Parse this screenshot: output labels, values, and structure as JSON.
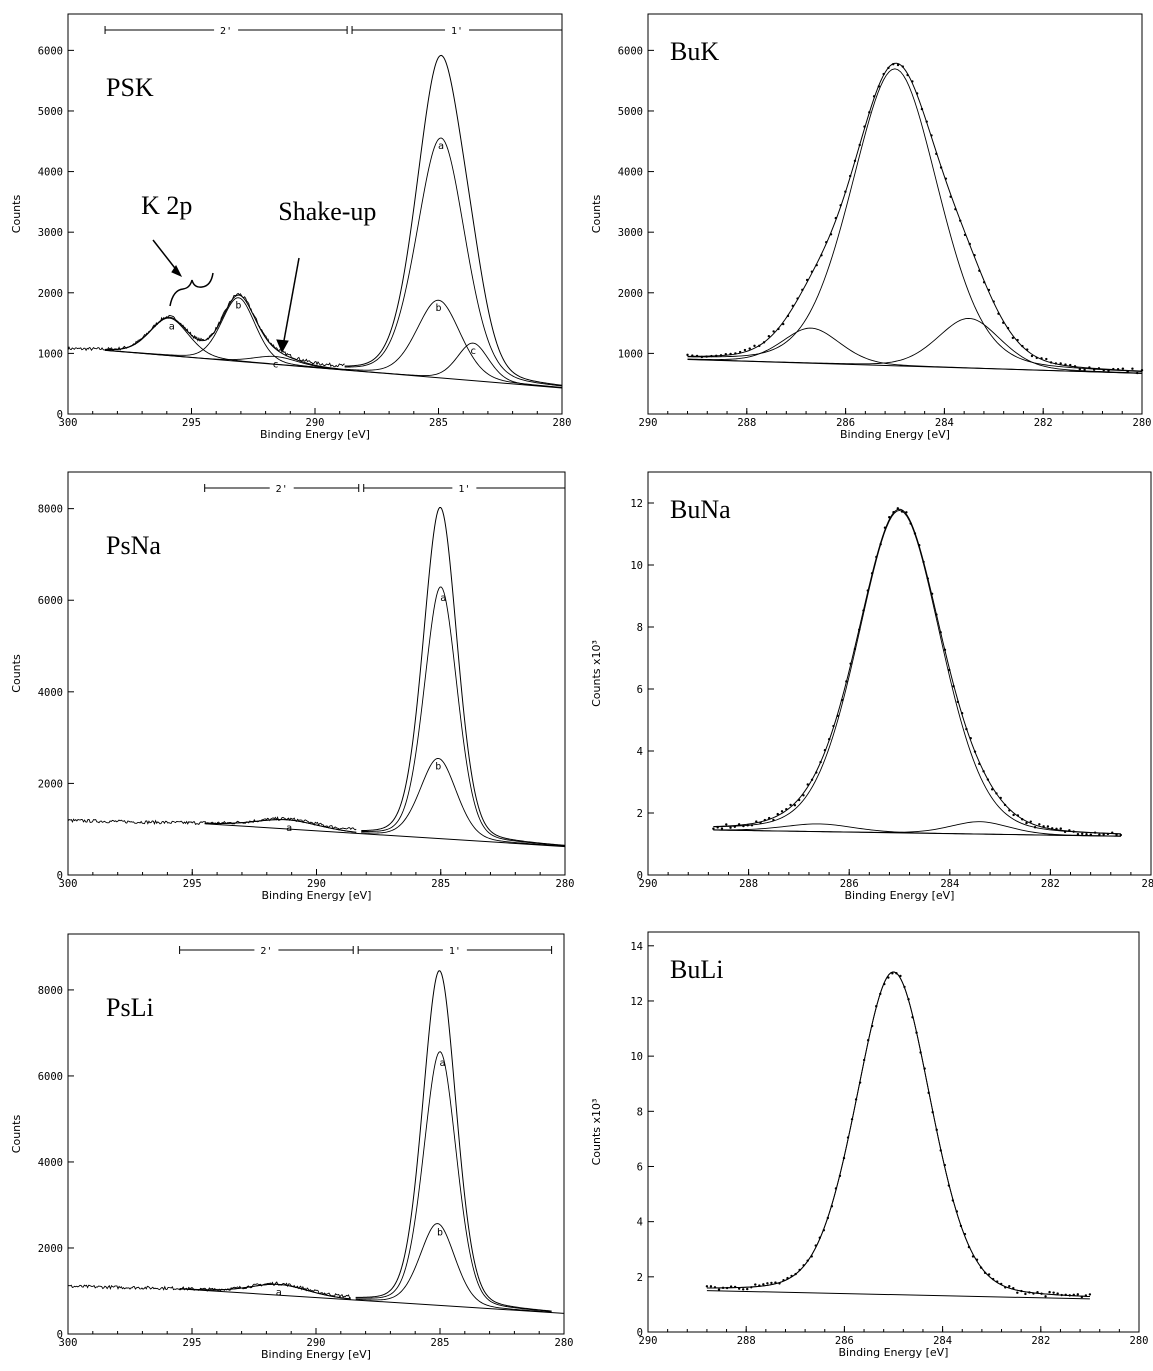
{
  "chart_data": [
    {
      "id": "psk",
      "type": "line",
      "title": "PSK",
      "xlabel": "Binding Energy [eV]",
      "ylabel": "Counts",
      "y_multiplier_label": "",
      "xlim": [
        300,
        280
      ],
      "ylim": [
        0,
        6600
      ],
      "xticks": [
        300,
        295,
        290,
        285,
        280
      ],
      "yticks": [
        0,
        1000,
        2000,
        3000,
        4000,
        5000,
        6000
      ],
      "ranges": [
        {
          "label": "2'",
          "from": 298.5,
          "to": 288.7
        },
        {
          "label": "1'",
          "from": 288.5,
          "to": 280
        }
      ],
      "background": {
        "x": [
          298.5,
          280
        ],
        "y": [
          1050,
          430
        ]
      },
      "components": [
        {
          "name": "a",
          "center": 284.9,
          "height": 3960,
          "width": 1.0,
          "label_x": 284.9
        },
        {
          "name": "b",
          "center": 285.0,
          "height": 1280,
          "width": 0.9,
          "label_x": 285.0
        },
        {
          "name": "c",
          "center": 283.6,
          "height": 620,
          "width": 0.65,
          "label_x": 283.6
        },
        {
          "name": "a",
          "center": 295.9,
          "height": 620,
          "width": 0.8,
          "label_x": 295.8
        },
        {
          "name": "b",
          "center": 293.1,
          "height": 1050,
          "width": 0.7,
          "label_x": 293.1
        },
        {
          "name": "c",
          "center": 291.6,
          "height": 130,
          "width": 0.9,
          "label_x": 291.6
        }
      ],
      "envelope_groups": [
        [
          0,
          1,
          2
        ],
        [
          3,
          4,
          5
        ]
      ],
      "envelope_range": [
        [
          288.8,
          280
        ],
        [
          298.5,
          288.7
        ]
      ],
      "noisy_data_x_range": [
        300,
        288.8
      ],
      "annotations": [
        {
          "text": "K 2p",
          "x": 296.0,
          "y": 3300
        },
        {
          "text": "Shake-up",
          "x": 289.5,
          "y": 3200
        }
      ]
    },
    {
      "id": "buk",
      "type": "scatter",
      "title": "BuK",
      "xlabel": "Binding Energy [eV]",
      "ylabel": "Counts",
      "y_multiplier_label": "",
      "xlim": [
        290,
        280
      ],
      "ylim": [
        0,
        6600
      ],
      "xticks": [
        290,
        288,
        286,
        284,
        282,
        280
      ],
      "yticks": [
        1000,
        2000,
        3000,
        4000,
        5000,
        6000
      ],
      "ranges": [],
      "background": {
        "x": [
          289.2,
          280
        ],
        "y": [
          900,
          670
        ]
      },
      "components": [
        {
          "name": "",
          "center": 285.0,
          "height": 4900,
          "width": 0.9,
          "label_x": 285.0
        },
        {
          "name": "",
          "center": 286.7,
          "height": 580,
          "width": 0.6,
          "label_x": 286.7
        },
        {
          "name": "",
          "center": 283.5,
          "height": 820,
          "width": 0.65,
          "label_x": 283.5
        }
      ],
      "envelope_groups": [
        [
          0,
          1,
          2
        ]
      ],
      "envelope_range": [
        [
          289.2,
          280
        ]
      ],
      "points_x_range": [
        289.2,
        280
      ],
      "annotations": []
    },
    {
      "id": "psna",
      "type": "line",
      "title": "PsNa",
      "xlabel": "Binding Energy [eV]",
      "ylabel": "Counts",
      "y_multiplier_label": "",
      "xlim": [
        300,
        280
      ],
      "ylim": [
        0,
        8800
      ],
      "xticks": [
        300,
        295,
        290,
        285,
        280
      ],
      "yticks": [
        0,
        2000,
        4000,
        6000,
        8000
      ],
      "ranges": [
        {
          "label": "2'",
          "from": 294.5,
          "to": 288.3
        },
        {
          "label": "1'",
          "from": 288.1,
          "to": 280
        }
      ],
      "background": {
        "x": [
          294.5,
          280
        ],
        "y": [
          1120,
          620
        ]
      },
      "components": [
        {
          "name": "a",
          "center": 285.0,
          "height": 5500,
          "width": 0.68,
          "label_x": 284.9
        },
        {
          "name": "b",
          "center": 285.1,
          "height": 1750,
          "width": 0.75,
          "label_x": 285.1
        },
        {
          "name": "a",
          "center": 291.2,
          "height": 200,
          "width": 1.3,
          "label_x": 291.1
        }
      ],
      "envelope_groups": [
        [
          0,
          1
        ],
        [
          2
        ]
      ],
      "envelope_range": [
        [
          288.2,
          280
        ],
        [
          294.5,
          288.4
        ]
      ],
      "noisy_data_x_range": [
        300,
        288.4
      ],
      "annotations": []
    },
    {
      "id": "buna",
      "type": "scatter",
      "title": "BuNa",
      "xlabel": "Binding Energy [eV]",
      "ylabel": "Counts x10³",
      "y_multiplier_label": "x10³",
      "xlim": [
        290,
        280
      ],
      "ylim": [
        0,
        13
      ],
      "xticks": [
        290,
        288,
        286,
        284,
        282,
        280
      ],
      "yticks": [
        0,
        2,
        4,
        6,
        8,
        10,
        12
      ],
      "ranges": [],
      "background": {
        "x": [
          288.7,
          280.6
        ],
        "y": [
          1.45,
          1.25
        ]
      },
      "components": [
        {
          "name": "",
          "center": 285.0,
          "height": 10.4,
          "width": 0.85,
          "label_x": 285.0
        },
        {
          "name": "",
          "center": 286.6,
          "height": 0.25,
          "width": 0.7,
          "label_x": 286.6
        },
        {
          "name": "",
          "center": 283.4,
          "height": 0.4,
          "width": 0.6,
          "label_x": 283.4
        }
      ],
      "envelope_groups": [
        [
          0,
          1,
          2
        ]
      ],
      "envelope_range": [
        [
          288.7,
          280.6
        ]
      ],
      "points_x_range": [
        288.7,
        280.6
      ],
      "annotations": []
    },
    {
      "id": "psli",
      "type": "line",
      "title": "PsLi",
      "xlabel": "Binding Energy [eV]",
      "ylabel": "Counts",
      "y_multiplier_label": "",
      "xlim": [
        300,
        280
      ],
      "ylim": [
        0,
        9300
      ],
      "xticks": [
        300,
        295,
        290,
        285,
        280
      ],
      "yticks": [
        0,
        2000,
        4000,
        6000,
        8000
      ],
      "ranges": [
        {
          "label": "2'",
          "from": 295.5,
          "to": 288.5
        },
        {
          "label": "1'",
          "from": 288.3,
          "to": 280.5
        }
      ],
      "background": {
        "x": [
          295.5,
          280
        ],
        "y": [
          1050,
          480
        ]
      },
      "components": [
        {
          "name": "a",
          "center": 285.0,
          "height": 5900,
          "width": 0.68,
          "label_x": 284.9
        },
        {
          "name": "b",
          "center": 285.1,
          "height": 1900,
          "width": 0.72,
          "label_x": 285.0
        },
        {
          "name": "a",
          "center": 291.5,
          "height": 250,
          "width": 1.2,
          "label_x": 291.5
        }
      ],
      "envelope_groups": [
        [
          0,
          1
        ],
        [
          2
        ]
      ],
      "envelope_range": [
        [
          288.4,
          280.5
        ],
        [
          295.5,
          288.6
        ]
      ],
      "noisy_data_x_range": [
        300,
        288.6
      ],
      "annotations": []
    },
    {
      "id": "buli",
      "type": "scatter",
      "title": "BuLi",
      "xlabel": "Binding Energy [eV]",
      "ylabel": "Counts x10³",
      "y_multiplier_label": "x10³",
      "xlim": [
        290,
        280
      ],
      "ylim": [
        0,
        14.5
      ],
      "xticks": [
        290,
        288,
        286,
        284,
        282,
        280
      ],
      "yticks": [
        0,
        2,
        4,
        6,
        8,
        10,
        12,
        14
      ],
      "ranges": [],
      "background": {
        "x": [
          288.8,
          281
        ],
        "y": [
          1.5,
          1.2
        ]
      },
      "components": [
        {
          "name": "",
          "center": 285.0,
          "height": 11.7,
          "width": 0.78,
          "label_x": 285.0
        }
      ],
      "envelope_groups": [
        [
          0
        ]
      ],
      "envelope_range": [
        [
          288.8,
          281
        ]
      ],
      "points_x_range": [
        288.8,
        281
      ],
      "annotations": []
    }
  ]
}
